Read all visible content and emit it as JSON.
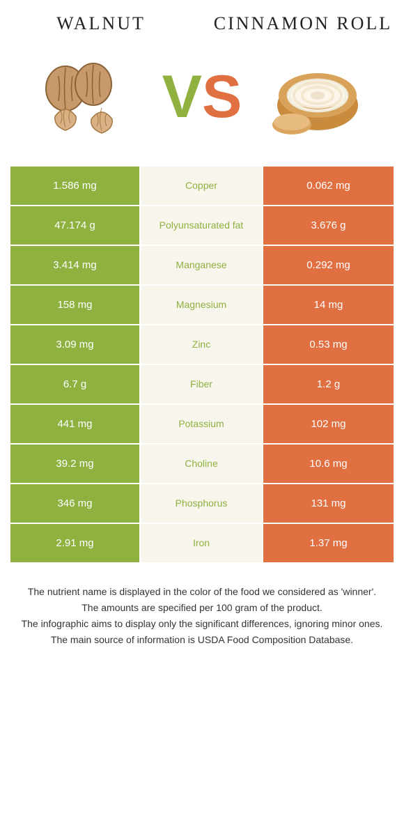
{
  "header": {
    "left_title": "Walnut",
    "right_title": "Cinnamon roll"
  },
  "vs": {
    "v": "V",
    "s": "S"
  },
  "colors": {
    "left_bg": "#8eb140",
    "right_bg": "#e06f42",
    "mid_bg": "#f8f5ed",
    "left_text": "#8eb140",
    "right_text": "#e06f42",
    "nutrient_left_color": "#8eb140",
    "nutrient_right_color": "#e06f42",
    "v_color": "#8eb140",
    "s_color": "#e06f42"
  },
  "rows": [
    {
      "left": "1.586 mg",
      "nutrient": "Copper",
      "right": "0.062 mg",
      "winner": "left"
    },
    {
      "left": "47.174 g",
      "nutrient": "Polyunsaturated fat",
      "right": "3.676 g",
      "winner": "left"
    },
    {
      "left": "3.414 mg",
      "nutrient": "Manganese",
      "right": "0.292 mg",
      "winner": "left"
    },
    {
      "left": "158 mg",
      "nutrient": "Magnesium",
      "right": "14 mg",
      "winner": "left"
    },
    {
      "left": "3.09 mg",
      "nutrient": "Zinc",
      "right": "0.53 mg",
      "winner": "left"
    },
    {
      "left": "6.7 g",
      "nutrient": "Fiber",
      "right": "1.2 g",
      "winner": "left"
    },
    {
      "left": "441 mg",
      "nutrient": "Potassium",
      "right": "102 mg",
      "winner": "left"
    },
    {
      "left": "39.2 mg",
      "nutrient": "Choline",
      "right": "10.6 mg",
      "winner": "left"
    },
    {
      "left": "346 mg",
      "nutrient": "Phosphorus",
      "right": "131 mg",
      "winner": "left"
    },
    {
      "left": "2.91 mg",
      "nutrient": "Iron",
      "right": "1.37 mg",
      "winner": "left"
    }
  ],
  "footnotes": [
    "The nutrient name is displayed in the color of the food we considered as 'winner'.",
    "The amounts are specified per 100 gram of the product.",
    "The infographic aims to display only the significant differences, ignoring minor ones.",
    "The main source of information is USDA Food Composition Database."
  ]
}
